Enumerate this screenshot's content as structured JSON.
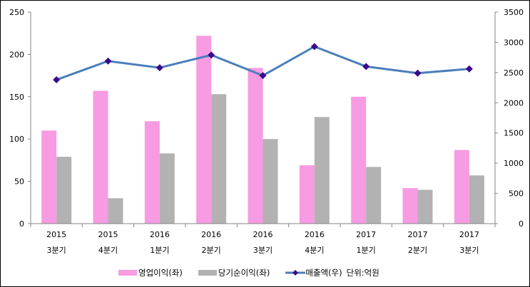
{
  "chart_data": {
    "type": "bar+line",
    "categories": [
      [
        "2015",
        "3분기"
      ],
      [
        "2015",
        "4분기"
      ],
      [
        "2016",
        "1분기"
      ],
      [
        "2016",
        "2분기"
      ],
      [
        "2016",
        "3분기"
      ],
      [
        "2016",
        "4분기"
      ],
      [
        "2017",
        "1분기"
      ],
      [
        "2017",
        "2분기"
      ],
      [
        "2017",
        "3분기"
      ]
    ],
    "series": [
      {
        "name": "영업이익(좌)",
        "type": "bar",
        "axis": "left",
        "color": "#f79be2",
        "values": [
          110,
          157,
          121,
          222,
          184,
          69,
          150,
          42,
          87
        ]
      },
      {
        "name": "당기순이익(좌)",
        "type": "bar",
        "axis": "left",
        "color": "#b2b2b2",
        "values": [
          79,
          30,
          83,
          153,
          100,
          126,
          67,
          40,
          57
        ]
      },
      {
        "name": "매출액(우)",
        "type": "line",
        "axis": "right",
        "color": "#4a7ebb",
        "marker_color": "#3a0a8c",
        "values": [
          2380,
          2690,
          2580,
          2790,
          2450,
          2930,
          2600,
          2490,
          2560
        ]
      }
    ],
    "unit_note": "단위:억원",
    "ylim_left": [
      0,
      250
    ],
    "yticks_left": [
      0,
      50,
      100,
      150,
      200,
      250
    ],
    "ylim_right": [
      0,
      3500
    ],
    "yticks_right": [
      0,
      500,
      1000,
      1500,
      2000,
      2500,
      3000,
      3500
    ],
    "grid": false,
    "legend": "bottom"
  }
}
